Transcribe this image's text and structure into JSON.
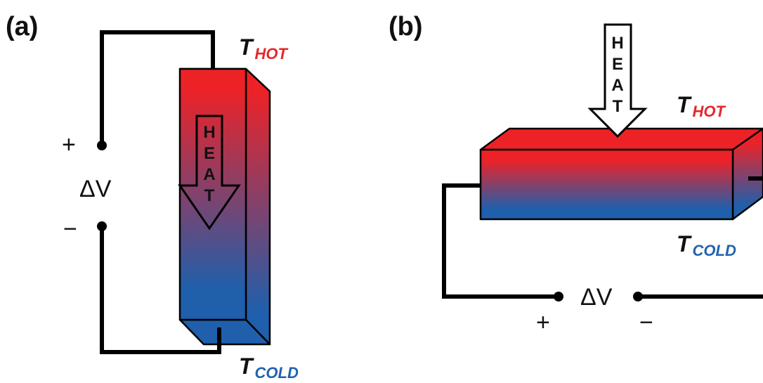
{
  "colors": {
    "hot": "#ed2227",
    "cold": "#1f5fab",
    "hot_label": "#e5262b",
    "cold_label": "#2262ad"
  },
  "panel_a": {
    "label": "(a)",
    "plus": "+",
    "minus": "−",
    "delta_v": "ΔV",
    "t_hot": {
      "main": "T",
      "sub": "HOT"
    },
    "t_cold": {
      "main": "T",
      "sub": "COLD"
    },
    "heat_letters": [
      "H",
      "E",
      "A",
      "T"
    ]
  },
  "panel_b": {
    "label": "(b)",
    "plus": "+",
    "minus": "−",
    "delta_v": "ΔV",
    "t_hot": {
      "main": "T",
      "sub": "HOT"
    },
    "t_cold": {
      "main": "T",
      "sub": "COLD"
    },
    "heat_letters": [
      "H",
      "E",
      "A",
      "T"
    ]
  }
}
